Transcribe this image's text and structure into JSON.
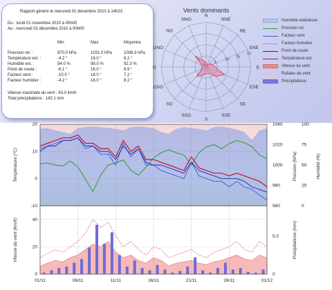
{
  "report": {
    "title": "Rapport généré le mercredi 01 décembre 2010 à 14h23",
    "period_from": "Du : lundi 01 novembre 2010 à 00h00",
    "period_to": "Au : mercredi 01 décembre 2010 à 00h00",
    "headers": [
      "Min",
      "Max",
      "Moyenne"
    ],
    "rows": [
      {
        "label": "Pression rel. :",
        "min": "970.0 hPa",
        "max": "1031.0 hPa",
        "avg": "1008.3 hPa"
      },
      {
        "label": "Température ext. :",
        "min": "-4.2 °",
        "max": "18.0 °",
        "avg": "8.2 °"
      },
      {
        "label": "Humidité ext. :",
        "min": "54.0 %",
        "max": "98.0 %",
        "avg": "92.3 %"
      },
      {
        "label": "Point de rosée :",
        "min": "-6.1 °",
        "max": "16.0 °",
        "avg": "6.9 °"
      },
      {
        "label": "Facteur vent :",
        "min": "-10.0 °",
        "max": "18.0 °",
        "avg": "7.2 °"
      },
      {
        "label": "Facteur humidex :",
        "min": "-4.2 °",
        "max": "18.0 °",
        "avg": "8.2 °"
      }
    ],
    "max_wind": "Vitesse maximale du vent : 43.0 km/h",
    "total_precip": "Total précipitations : 142.1 mm"
  },
  "legend": [
    {
      "label": "Humidité extérieure",
      "color": "#b7c3ec",
      "kind": "area"
    },
    {
      "label": "Pression rel.",
      "color": "#2e9a2e",
      "kind": "line"
    },
    {
      "label": "Facteur vent",
      "color": "#3d5bd8",
      "kind": "line"
    },
    {
      "label": "Facteur humidex",
      "color": "#e07ba8",
      "kind": "line"
    },
    {
      "label": "Point de rosée",
      "color": "#2020b0",
      "kind": "line"
    },
    {
      "label": "Température ext.",
      "color": "#c8102e",
      "kind": "line"
    },
    {
      "label": "Vitesse du vent",
      "color": "#f08888",
      "kind": "area"
    },
    {
      "label": "Rafales de vent",
      "color": "#f4b7b7",
      "kind": "line"
    },
    {
      "label": "Précipitations",
      "color": "#7a78e0",
      "kind": "bar"
    }
  ],
  "chart_data": [
    {
      "type": "radar",
      "title": "Vents dominants",
      "directions": [
        "N",
        "NNE",
        "NE",
        "ENE",
        "E",
        "ESE",
        "SE",
        "SSE",
        "S",
        "SSO",
        "SO",
        "OSO",
        "O",
        "ONO",
        "NO",
        "NNO"
      ],
      "ring_labels": [
        "0",
        "5",
        "10",
        "15",
        "20"
      ],
      "rlim": [
        0,
        20
      ],
      "series": [
        {
          "name": "Vitesse du vent",
          "values": [
            2,
            1,
            2,
            3,
            4,
            9,
            6,
            3,
            3,
            4,
            6,
            2,
            2,
            2,
            7,
            3
          ]
        }
      ]
    },
    {
      "type": "line",
      "x_ticks": [
        "01/11",
        "06/11",
        "11/11",
        "16/11",
        "21/11",
        "26/11",
        "01/12"
      ],
      "days": 30,
      "left_axis": {
        "label": "Température (°C)",
        "ticks": [
          "-10",
          "0",
          "10",
          "20"
        ],
        "lim": [
          -10,
          20
        ]
      },
      "pressure_axis": {
        "label": "Pression (hPa)",
        "ticks": [
          "960",
          "980",
          "1000",
          "1020",
          "1040"
        ],
        "lim": [
          960,
          1040
        ]
      },
      "humidity_axis": {
        "label": "Humidité (%)",
        "ticks": [
          "0",
          "25",
          "50",
          "75",
          "100"
        ],
        "lim": [
          0,
          100
        ]
      },
      "series": [
        {
          "name": "Humidité extérieure",
          "values": [
            94,
            95,
            92,
            90,
            88,
            95,
            96,
            97,
            96,
            95,
            94,
            92,
            96,
            97,
            96,
            95,
            90,
            88,
            94,
            96,
            95,
            94,
            92,
            96,
            97,
            95,
            93,
            90,
            80,
            92,
            95
          ]
        },
        {
          "name": "Pression rel.",
          "values": [
            1001,
            1002,
            1000,
            999,
            1004,
            998,
            986,
            974,
            990,
            1000,
            1002,
            1005,
            995,
            990,
            998,
            1007,
            1012,
            1015,
            1012,
            1010,
            1000,
            1012,
            1018,
            1020,
            1016,
            1021,
            1024,
            1022,
            1018,
            1010,
            1006
          ]
        },
        {
          "name": "Température ext.",
          "values": [
            12,
            13,
            14,
            15,
            15,
            16,
            13,
            13,
            11,
            11,
            8,
            14,
            10,
            12,
            7,
            7,
            6,
            5,
            4,
            3,
            8,
            4,
            3,
            2,
            2,
            1,
            2,
            1,
            0,
            -1,
            -3
          ]
        },
        {
          "name": "Point de rosée",
          "values": [
            10,
            12,
            12,
            14,
            14,
            15,
            12,
            12,
            10,
            10,
            7,
            12,
            9,
            11,
            6,
            5,
            5,
            4,
            3,
            2,
            6,
            3,
            2,
            1,
            0,
            0,
            0,
            -1,
            -3,
            -4,
            -5
          ]
        },
        {
          "name": "Facteur vent",
          "values": [
            11,
            12,
            13,
            14,
            14,
            15,
            11,
            12,
            9,
            9,
            5,
            13,
            8,
            11,
            5,
            5,
            3,
            2,
            1,
            0,
            6,
            1,
            0,
            -1,
            -1,
            -3,
            -1,
            -3,
            -4,
            -6,
            -8
          ]
        }
      ]
    },
    {
      "type": "bar",
      "x_ticks": [
        "01/11",
        "06/11",
        "11/11",
        "16/11",
        "21/11",
        "26/11",
        "01/12"
      ],
      "days": 30,
      "left_axis": {
        "label": "Vitesse du vent (km/h)",
        "ticks": [
          "0",
          "20",
          "40"
        ],
        "lim": [
          0,
          50
        ]
      },
      "right_axis": {
        "label": "Précipitations (mm)",
        "ticks": [
          "0",
          "5.0"
        ],
        "lim": [
          0,
          9
        ]
      },
      "series": [
        {
          "name": "Vitesse du vent",
          "values": [
            6,
            8,
            10,
            9,
            12,
            14,
            18,
            22,
            20,
            24,
            16,
            12,
            14,
            10,
            8,
            12,
            10,
            6,
            8,
            9,
            10,
            8,
            7,
            9,
            10,
            12,
            14,
            11,
            10,
            14,
            12
          ]
        },
        {
          "name": "Rafales de vent",
          "values": [
            12,
            15,
            18,
            16,
            20,
            24,
            30,
            40,
            34,
            38,
            28,
            20,
            24,
            18,
            14,
            20,
            18,
            12,
            14,
            16,
            18,
            14,
            12,
            16,
            18,
            20,
            24,
            18,
            16,
            24,
            20
          ]
        },
        {
          "name": "Précipitations",
          "values": [
            0.2,
            0.5,
            0.8,
            1.0,
            1.5,
            2.0,
            3.5,
            6.5,
            4.0,
            5.5,
            2.5,
            1.0,
            1.8,
            0.8,
            0.5,
            1.2,
            0.6,
            0.2,
            0.4,
            1.0,
            2.2,
            0.5,
            0.2,
            0.8,
            1.5,
            0.6,
            0.8,
            0.3,
            0.2,
            0.6,
            0.4
          ]
        }
      ]
    }
  ]
}
